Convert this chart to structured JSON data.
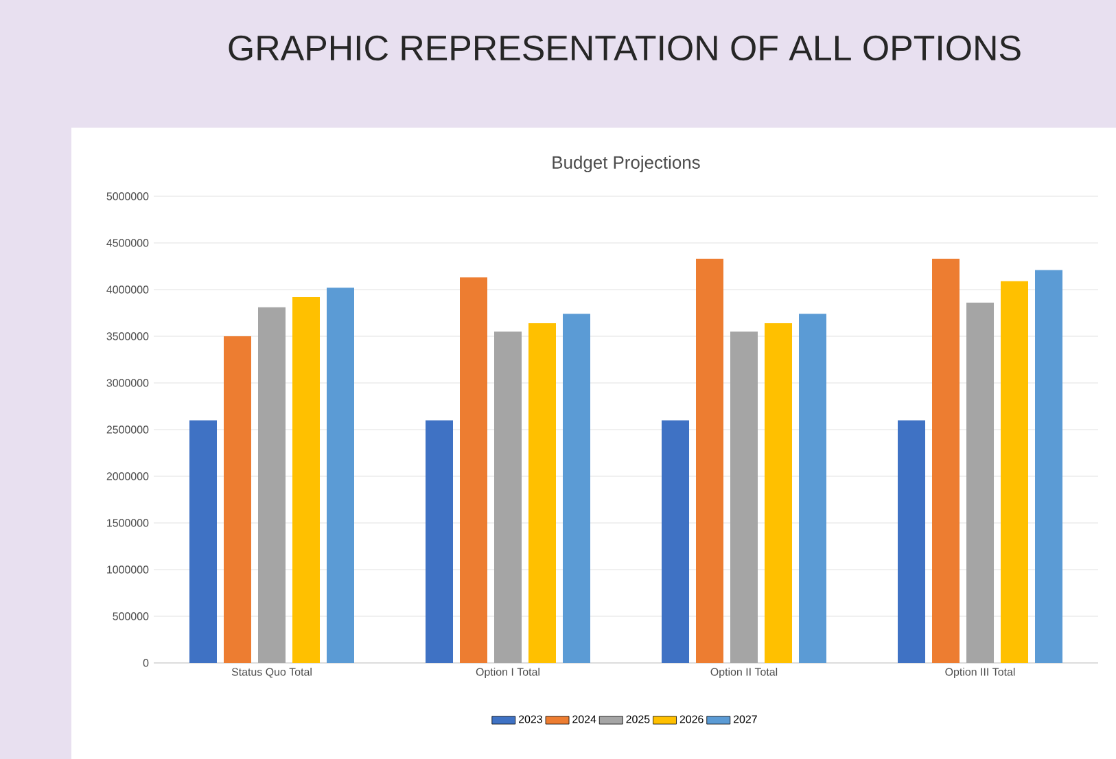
{
  "chart_data": {
    "type": "bar",
    "title": "GRAPHIC REPRESENTATION OF ALL OPTIONS",
    "subtitle": "Budget Projections",
    "categories": [
      "Status Quo Total",
      "Option I Total",
      "Option II Total",
      "Option III Total"
    ],
    "series": [
      {
        "name": "2023",
        "color": "#3f72c4",
        "values": [
          2600000,
          2600000,
          2600000,
          2600000
        ]
      },
      {
        "name": "2024",
        "color": "#ed7d31",
        "values": [
          3500000,
          4130000,
          4330000,
          4330000
        ]
      },
      {
        "name": "2025",
        "color": "#a5a5a5",
        "values": [
          3810000,
          3550000,
          3550000,
          3860000
        ]
      },
      {
        "name": "2026",
        "color": "#ffc000",
        "values": [
          3920000,
          3640000,
          3640000,
          4090000
        ]
      },
      {
        "name": "2027",
        "color": "#5b9bd5",
        "values": [
          4020000,
          3740000,
          3740000,
          4210000
        ]
      }
    ],
    "ylim": [
      0,
      5000000
    ],
    "yticks": [
      0,
      500000,
      1000000,
      1500000,
      2000000,
      2500000,
      3000000,
      3500000,
      4000000,
      4500000,
      5000000
    ],
    "grid": "y",
    "legend": "bottom"
  }
}
